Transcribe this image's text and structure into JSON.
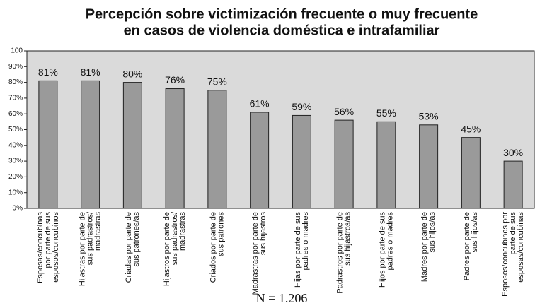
{
  "chart_data": {
    "type": "bar",
    "title": [
      "Percepción sobre victimización frecuente o muy frecuente",
      "en casos de violencia doméstica e intrafamiliar"
    ],
    "categories": [
      "Esposas/concubinas\npor parte de sus\nesposos/concubinos",
      "Hijastras por parte de\nsus padrastros/\nmadrastras",
      "Criadas por parte de\nsus patrones/as",
      "Hijastros por parte de\nsus padrastros/\nmadrastras",
      "Criados por parte de\nsus patrones",
      "Madrastras por parte de\nsus hijastros",
      "Hijas por parte de sus\npadres o madres",
      "Padrastros por parte de\nsus hijastros/as",
      "Hijos por parte de sus\npadres o madres",
      "Madres por parte de\nsus hijos/as",
      "Padres por parte de\nsus hijos/as",
      "Esposos/concubinos por\nparte de sus\nesposas/concubinas"
    ],
    "values": [
      81,
      81,
      80,
      76,
      75,
      61,
      59,
      56,
      55,
      53,
      45,
      30
    ],
    "value_labels": [
      "81%",
      "81%",
      "80%",
      "76%",
      "75%",
      "61%",
      "59%",
      "56%",
      "55%",
      "53%",
      "45%",
      "30%"
    ],
    "color": "#9a9a9a",
    "ylim": [
      0,
      100
    ],
    "yticks": [
      {
        "value": 0,
        "label": "0%"
      },
      {
        "value": 10,
        "label": "10%"
      },
      {
        "value": 20,
        "label": "20%"
      },
      {
        "value": 30,
        "label": "30%"
      },
      {
        "value": 40,
        "label": "40%"
      },
      {
        "value": 50,
        "label": "50%"
      },
      {
        "value": 60,
        "label": "60%"
      },
      {
        "value": 70,
        "label": "70%"
      },
      {
        "value": 80,
        "label": "80%"
      },
      {
        "value": 90,
        "label": "90%"
      },
      {
        "value": 100,
        "label": "100"
      }
    ],
    "grid": false,
    "note": "N = 1.206"
  }
}
